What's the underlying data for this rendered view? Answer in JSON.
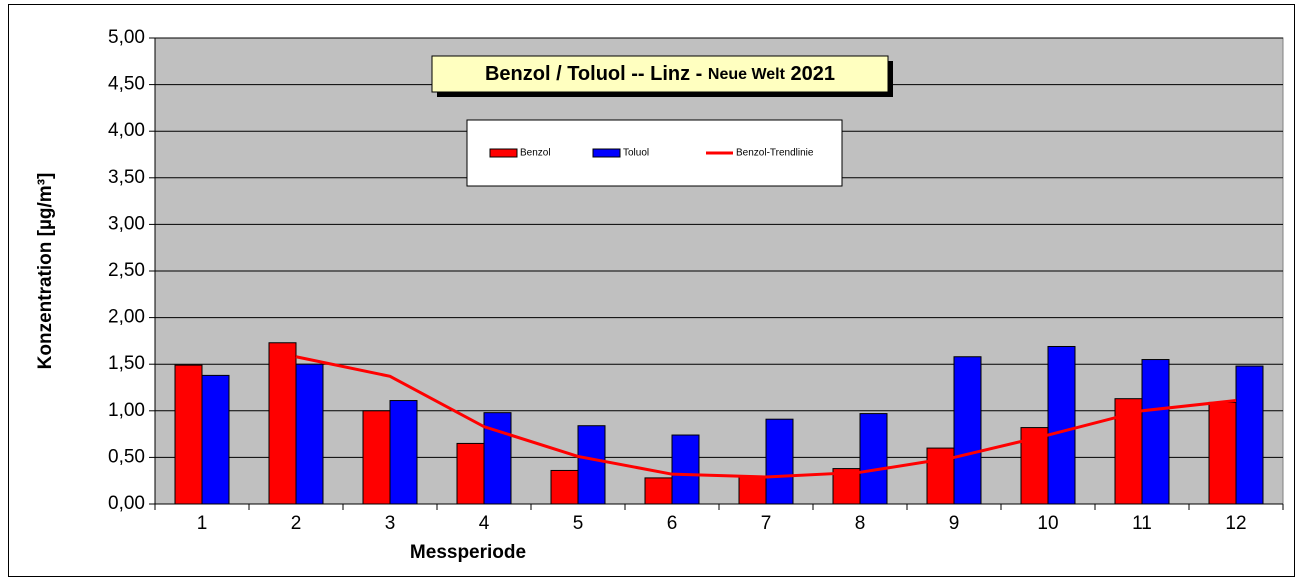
{
  "chart_data": {
    "type": "bar",
    "title_parts": [
      "Benzol / Toluol -- Linz - ",
      "Neue Welt",
      " 2021"
    ],
    "x_label": "Messperiode",
    "y_label": "Konzentration [µg/m³]",
    "categories": [
      "1",
      "2",
      "3",
      "4",
      "5",
      "6",
      "7",
      "8",
      "9",
      "10",
      "11",
      "12"
    ],
    "series": [
      {
        "name": "Benzol",
        "type": "bar",
        "color": "#ff0000",
        "values": [
          1.49,
          1.73,
          1.0,
          0.65,
          0.36,
          0.28,
          0.3,
          0.38,
          0.6,
          0.82,
          1.13,
          1.09
        ]
      },
      {
        "name": "Toluol",
        "type": "bar",
        "color": "#0000ff",
        "values": [
          1.38,
          1.5,
          1.11,
          0.98,
          0.84,
          0.74,
          0.91,
          0.97,
          1.58,
          1.69,
          1.55,
          1.48
        ]
      },
      {
        "name": "Benzol-Trendlinie",
        "type": "line",
        "color": "#ff0000",
        "values": [
          null,
          1.58,
          1.37,
          0.83,
          0.51,
          0.32,
          0.29,
          0.34,
          0.5,
          0.74,
          1.0,
          1.11
        ]
      }
    ],
    "ylim": [
      0,
      5
    ],
    "yticks": [
      {
        "value": 0,
        "label": "0,00"
      },
      {
        "value": 0.5,
        "label": "0,50"
      },
      {
        "value": 1,
        "label": "1,00"
      },
      {
        "value": 1.5,
        "label": "1,50"
      },
      {
        "value": 2,
        "label": "2,00"
      },
      {
        "value": 2.5,
        "label": "2,50"
      },
      {
        "value": 3,
        "label": "3,00"
      },
      {
        "value": 3.5,
        "label": "3,50"
      },
      {
        "value": 4,
        "label": "4,00"
      },
      {
        "value": 4.5,
        "label": "4,50"
      },
      {
        "value": 5,
        "label": "5,00"
      }
    ],
    "grid": true,
    "plot_background": "#c0c0c0"
  }
}
